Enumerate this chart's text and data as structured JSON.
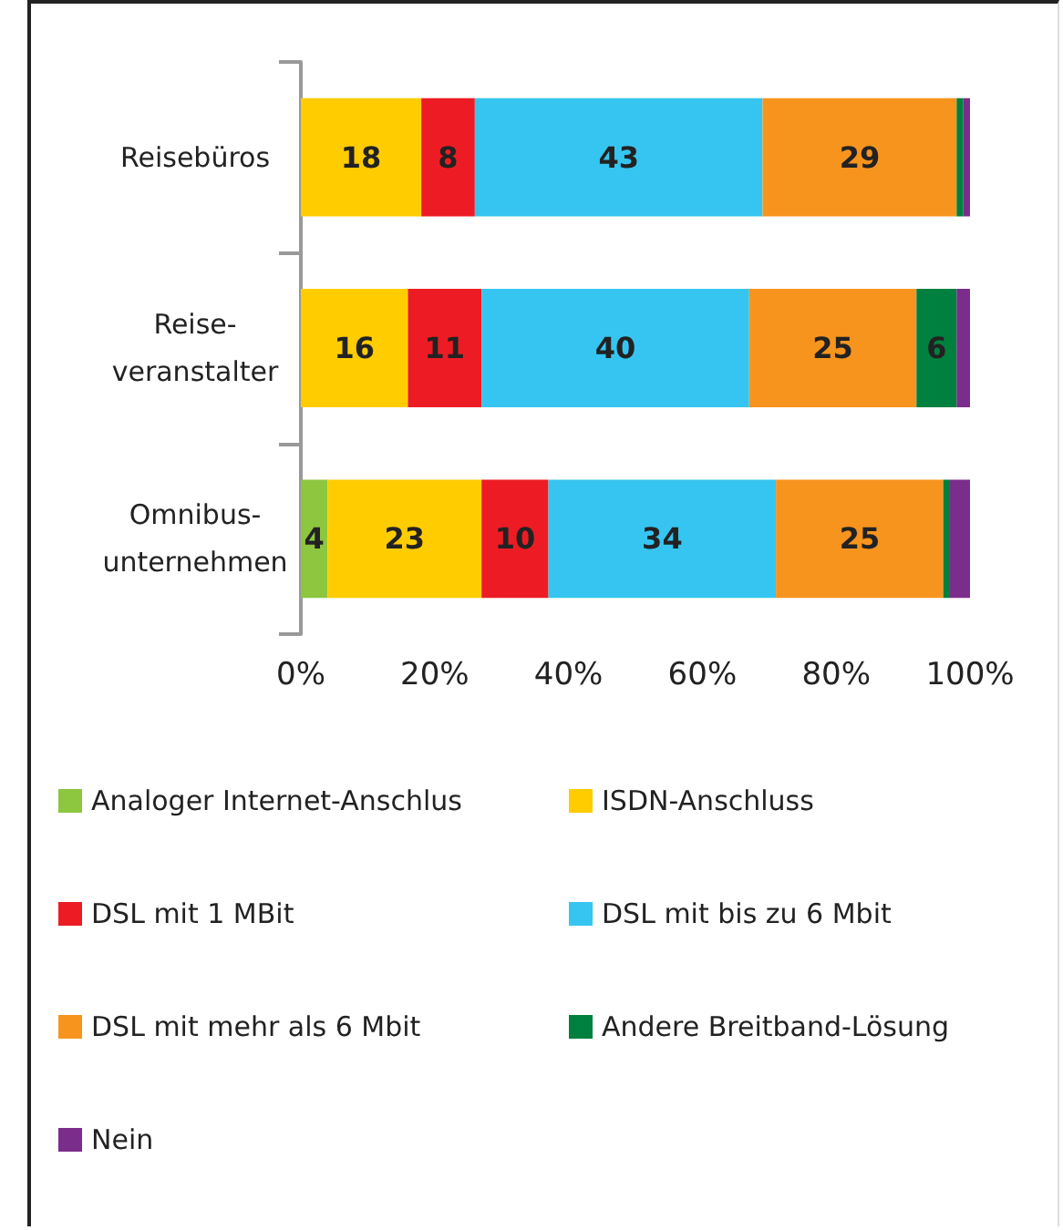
{
  "chart_data": {
    "type": "bar",
    "orientation": "horizontal",
    "stacked": true,
    "categories": [
      "Reisebüros",
      "Reise-\nveranstalter",
      "Omnibus-\nunternehmen"
    ],
    "series": [
      {
        "name": "Analoger Internet-Anschlus",
        "color": "#8dc63f",
        "values": [
          0,
          0,
          4
        ],
        "value_labels": [
          null,
          null,
          "4"
        ]
      },
      {
        "name": "ISDN-Anschluss",
        "color": "#ffcc00",
        "values": [
          18,
          16,
          23
        ],
        "value_labels": [
          "18",
          "16",
          "23"
        ]
      },
      {
        "name": "DSL mit 1 MBit",
        "color": "#ed1c24",
        "values": [
          8,
          11,
          10
        ],
        "value_labels": [
          "8",
          "11",
          "10"
        ]
      },
      {
        "name": "DSL mit bis zu 6 Mbit",
        "color": "#36c5f0",
        "values": [
          43,
          40,
          34
        ],
        "value_labels": [
          "43",
          "40",
          "34"
        ]
      },
      {
        "name": "DSL mit mehr als 6 Mbit",
        "color": "#f7941d",
        "values": [
          29,
          25,
          25
        ],
        "value_labels": [
          "29",
          "25",
          "25"
        ]
      },
      {
        "name": "Andere Breitband-Lösung",
        "color": "#00803e",
        "values": [
          1,
          6,
          1
        ],
        "value_labels": [
          null,
          "6",
          null
        ]
      },
      {
        "name": "Nein",
        "color": "#7b2d8b",
        "values": [
          1,
          2,
          3
        ],
        "value_labels": [
          null,
          null,
          null
        ]
      }
    ],
    "xlim": [
      0,
      100
    ],
    "xticks": [
      {
        "value": 0,
        "label": "0%"
      },
      {
        "value": 20,
        "label": "20%"
      },
      {
        "value": 40,
        "label": "40%"
      },
      {
        "value": 60,
        "label": "60%"
      },
      {
        "value": 80,
        "label": "80%"
      },
      {
        "value": 100,
        "label": "100%"
      }
    ],
    "grid": false,
    "legend": "bottom"
  }
}
